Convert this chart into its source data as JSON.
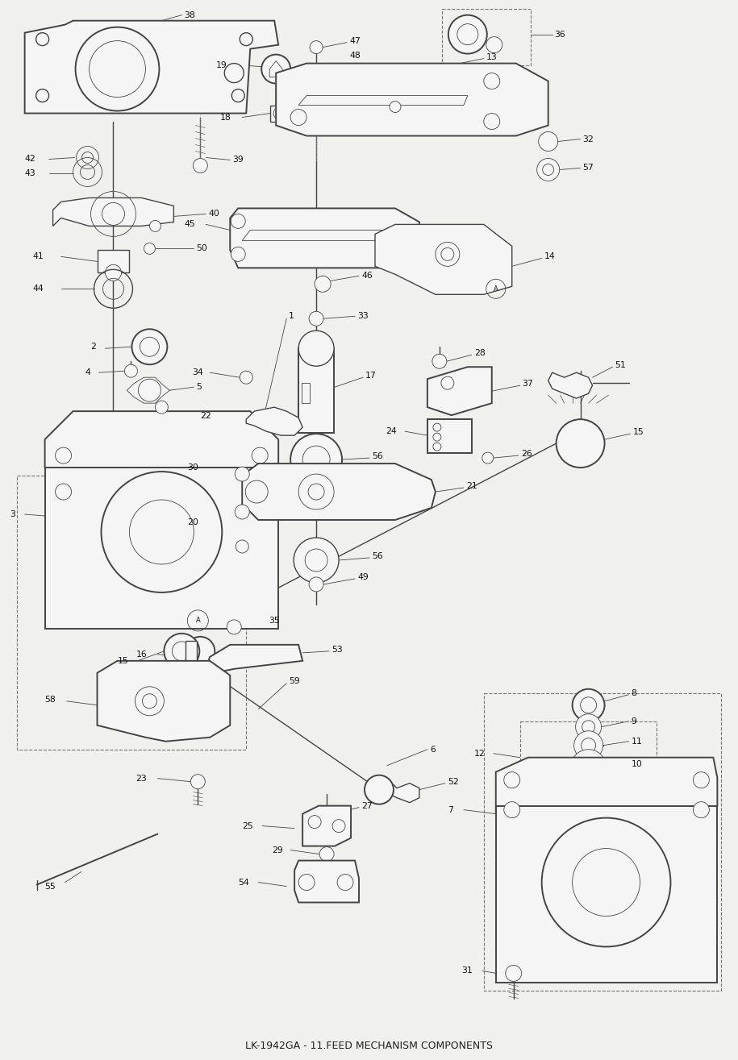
{
  "title": "LK-1942GA - 11.FEED MECHANISM COMPONENTS",
  "bg_color": "#f0f0ee",
  "line_color": "#444444",
  "text_color": "#111111",
  "dashed_box_color": "#777777",
  "fig_width": 9.15,
  "fig_height": 13.15,
  "dpi": 100,
  "lw_main": 1.0,
  "lw_thin": 0.6,
  "lw_thick": 1.4,
  "label_fs": 7.8
}
